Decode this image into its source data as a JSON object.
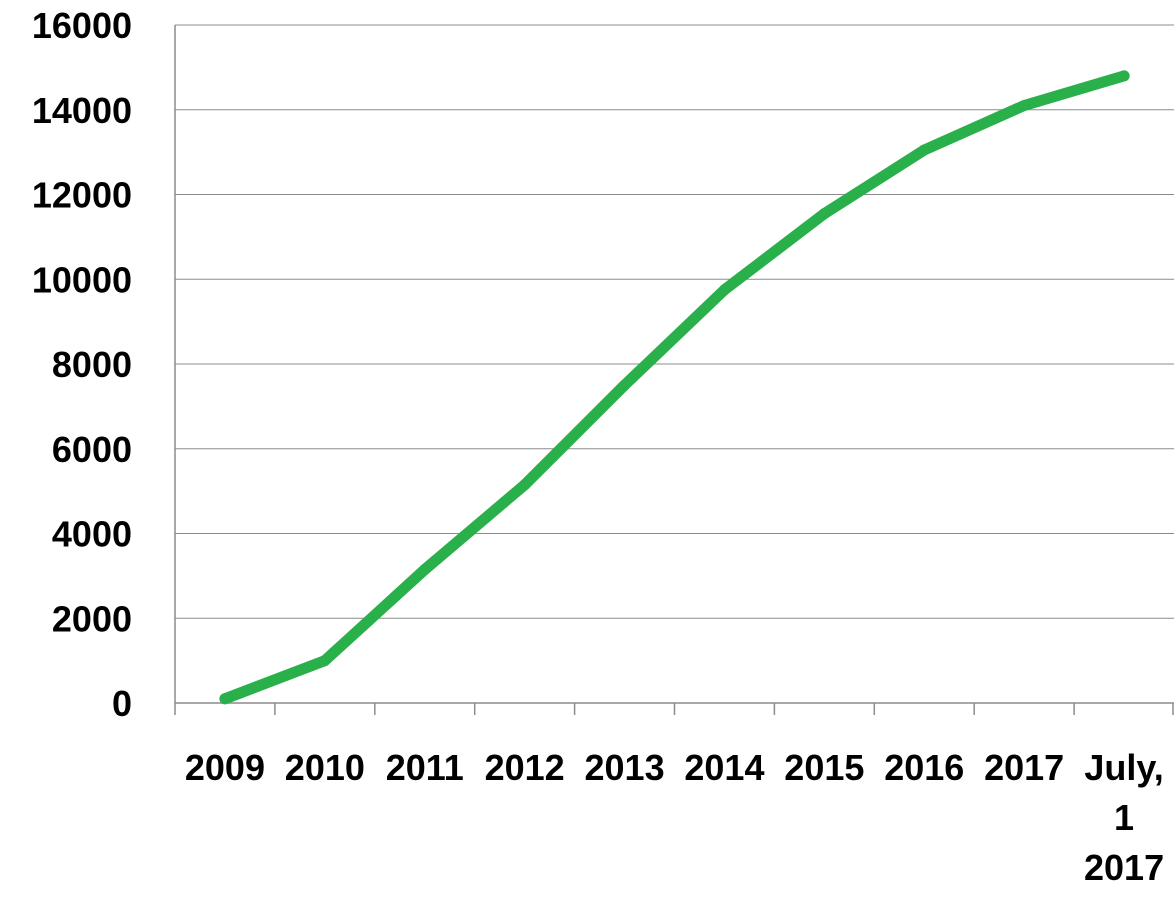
{
  "chart_data": {
    "type": "line",
    "categories": [
      "2009",
      "2010",
      "2011",
      "2012",
      "2013",
      "2014",
      "2015",
      "2016",
      "2017",
      [
        "July,",
        "1",
        "2017"
      ]
    ],
    "series": [
      {
        "values": [
          100,
          1000,
          3150,
          5150,
          7500,
          9750,
          11550,
          13050,
          14100,
          14800
        ]
      }
    ],
    "ylim": [
      0,
      16000
    ],
    "yticks": [
      "0",
      "2000",
      "4000",
      "6000",
      "8000",
      "10000",
      "12000",
      "14000",
      "16000"
    ],
    "grid": true,
    "legend": "none",
    "line_color": "#2AB04A"
  }
}
